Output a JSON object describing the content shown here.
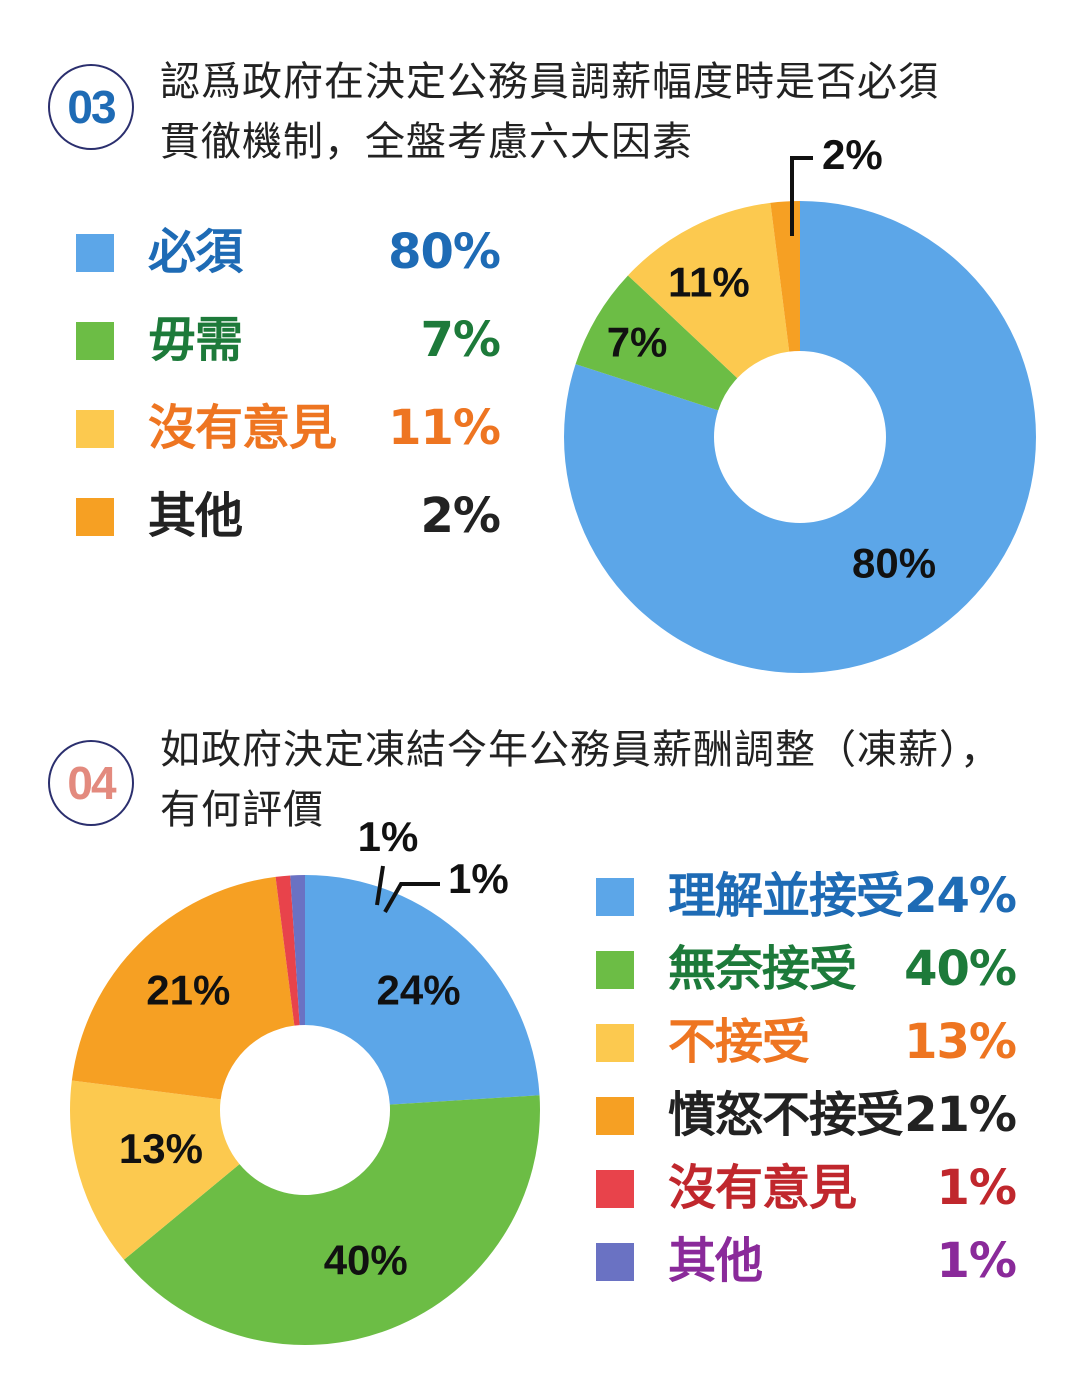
{
  "colors": {
    "blue": "#5ca6e8",
    "green": "#6cbd45",
    "yellow": "#fcc94f",
    "orange": "#f6a023",
    "red": "#e8434b",
    "purple": "#6a72c3",
    "badge03": "#1e6bb5",
    "badge04": "#e38a7e"
  },
  "q03": {
    "number": "03",
    "question_line1": "認爲政府在決定公務員調薪幅度時是否必須",
    "question_line2": "貫徹機制，全盤考慮六大因素",
    "legend": [
      {
        "label": "必須",
        "pct": "80%",
        "swatch": "#5ca6e8",
        "text_color": "#1e6bb5"
      },
      {
        "label": "毋需",
        "pct": "7%",
        "swatch": "#6cbd45",
        "text_color": "#1d7a3a"
      },
      {
        "label": "沒有意見",
        "pct": "11%",
        "swatch": "#fcc94f",
        "text_color": "#ee7521"
      },
      {
        "label": "其他",
        "pct": "2%",
        "swatch": "#f6a023",
        "text_color": "#222222"
      }
    ]
  },
  "q04": {
    "number": "04",
    "question_line1": "如政府決定凍結今年公務員薪酬調整（凍薪），",
    "question_line2": "有何評價",
    "legend": [
      {
        "label": "理解並接受",
        "pct": "24%",
        "swatch": "#5ca6e8",
        "text_color": "#1e6bb5"
      },
      {
        "label": "無奈接受",
        "pct": "40%",
        "swatch": "#6cbd45",
        "text_color": "#1d7a3a"
      },
      {
        "label": "不接受",
        "pct": "13%",
        "swatch": "#fcc94f",
        "text_color": "#ee7521"
      },
      {
        "label": "憤怒不接受",
        "pct": "21%",
        "swatch": "#f6a023",
        "text_color": "#222222"
      },
      {
        "label": "沒有意見",
        "pct": "1%",
        "swatch": "#e8434b",
        "text_color": "#c0272d"
      },
      {
        "label": "其他",
        "pct": "1%",
        "swatch": "#6a72c3",
        "text_color": "#8a2a9a"
      }
    ]
  },
  "chart_data": [
    {
      "type": "pie",
      "title": "認爲政府在決定公務員調薪幅度時是否必須貫徹機制，全盤考慮六大因素",
      "categories": [
        "必須",
        "毋需",
        "沒有意見",
        "其他"
      ],
      "values": [
        80,
        7,
        11,
        2
      ],
      "value_labels": [
        "80%",
        "7%",
        "11%",
        "2%"
      ],
      "colors": [
        "#5ca6e8",
        "#6cbd45",
        "#fcc94f",
        "#f6a023"
      ],
      "donut": true,
      "legend_placement": "left"
    },
    {
      "type": "pie",
      "title": "如政府決定凍結今年公務員薪酬調整（凍薪），有何評價",
      "categories": [
        "理解並接受",
        "無奈接受",
        "不接受",
        "憤怒不接受",
        "沒有意見",
        "其他"
      ],
      "values": [
        24,
        40,
        13,
        21,
        1,
        1
      ],
      "value_labels": [
        "24%",
        "40%",
        "13%",
        "21%",
        "1%",
        "1%"
      ],
      "colors": [
        "#5ca6e8",
        "#6cbd45",
        "#fcc94f",
        "#f6a023",
        "#e8434b",
        "#6a72c3"
      ],
      "donut": true,
      "legend_placement": "right"
    }
  ]
}
